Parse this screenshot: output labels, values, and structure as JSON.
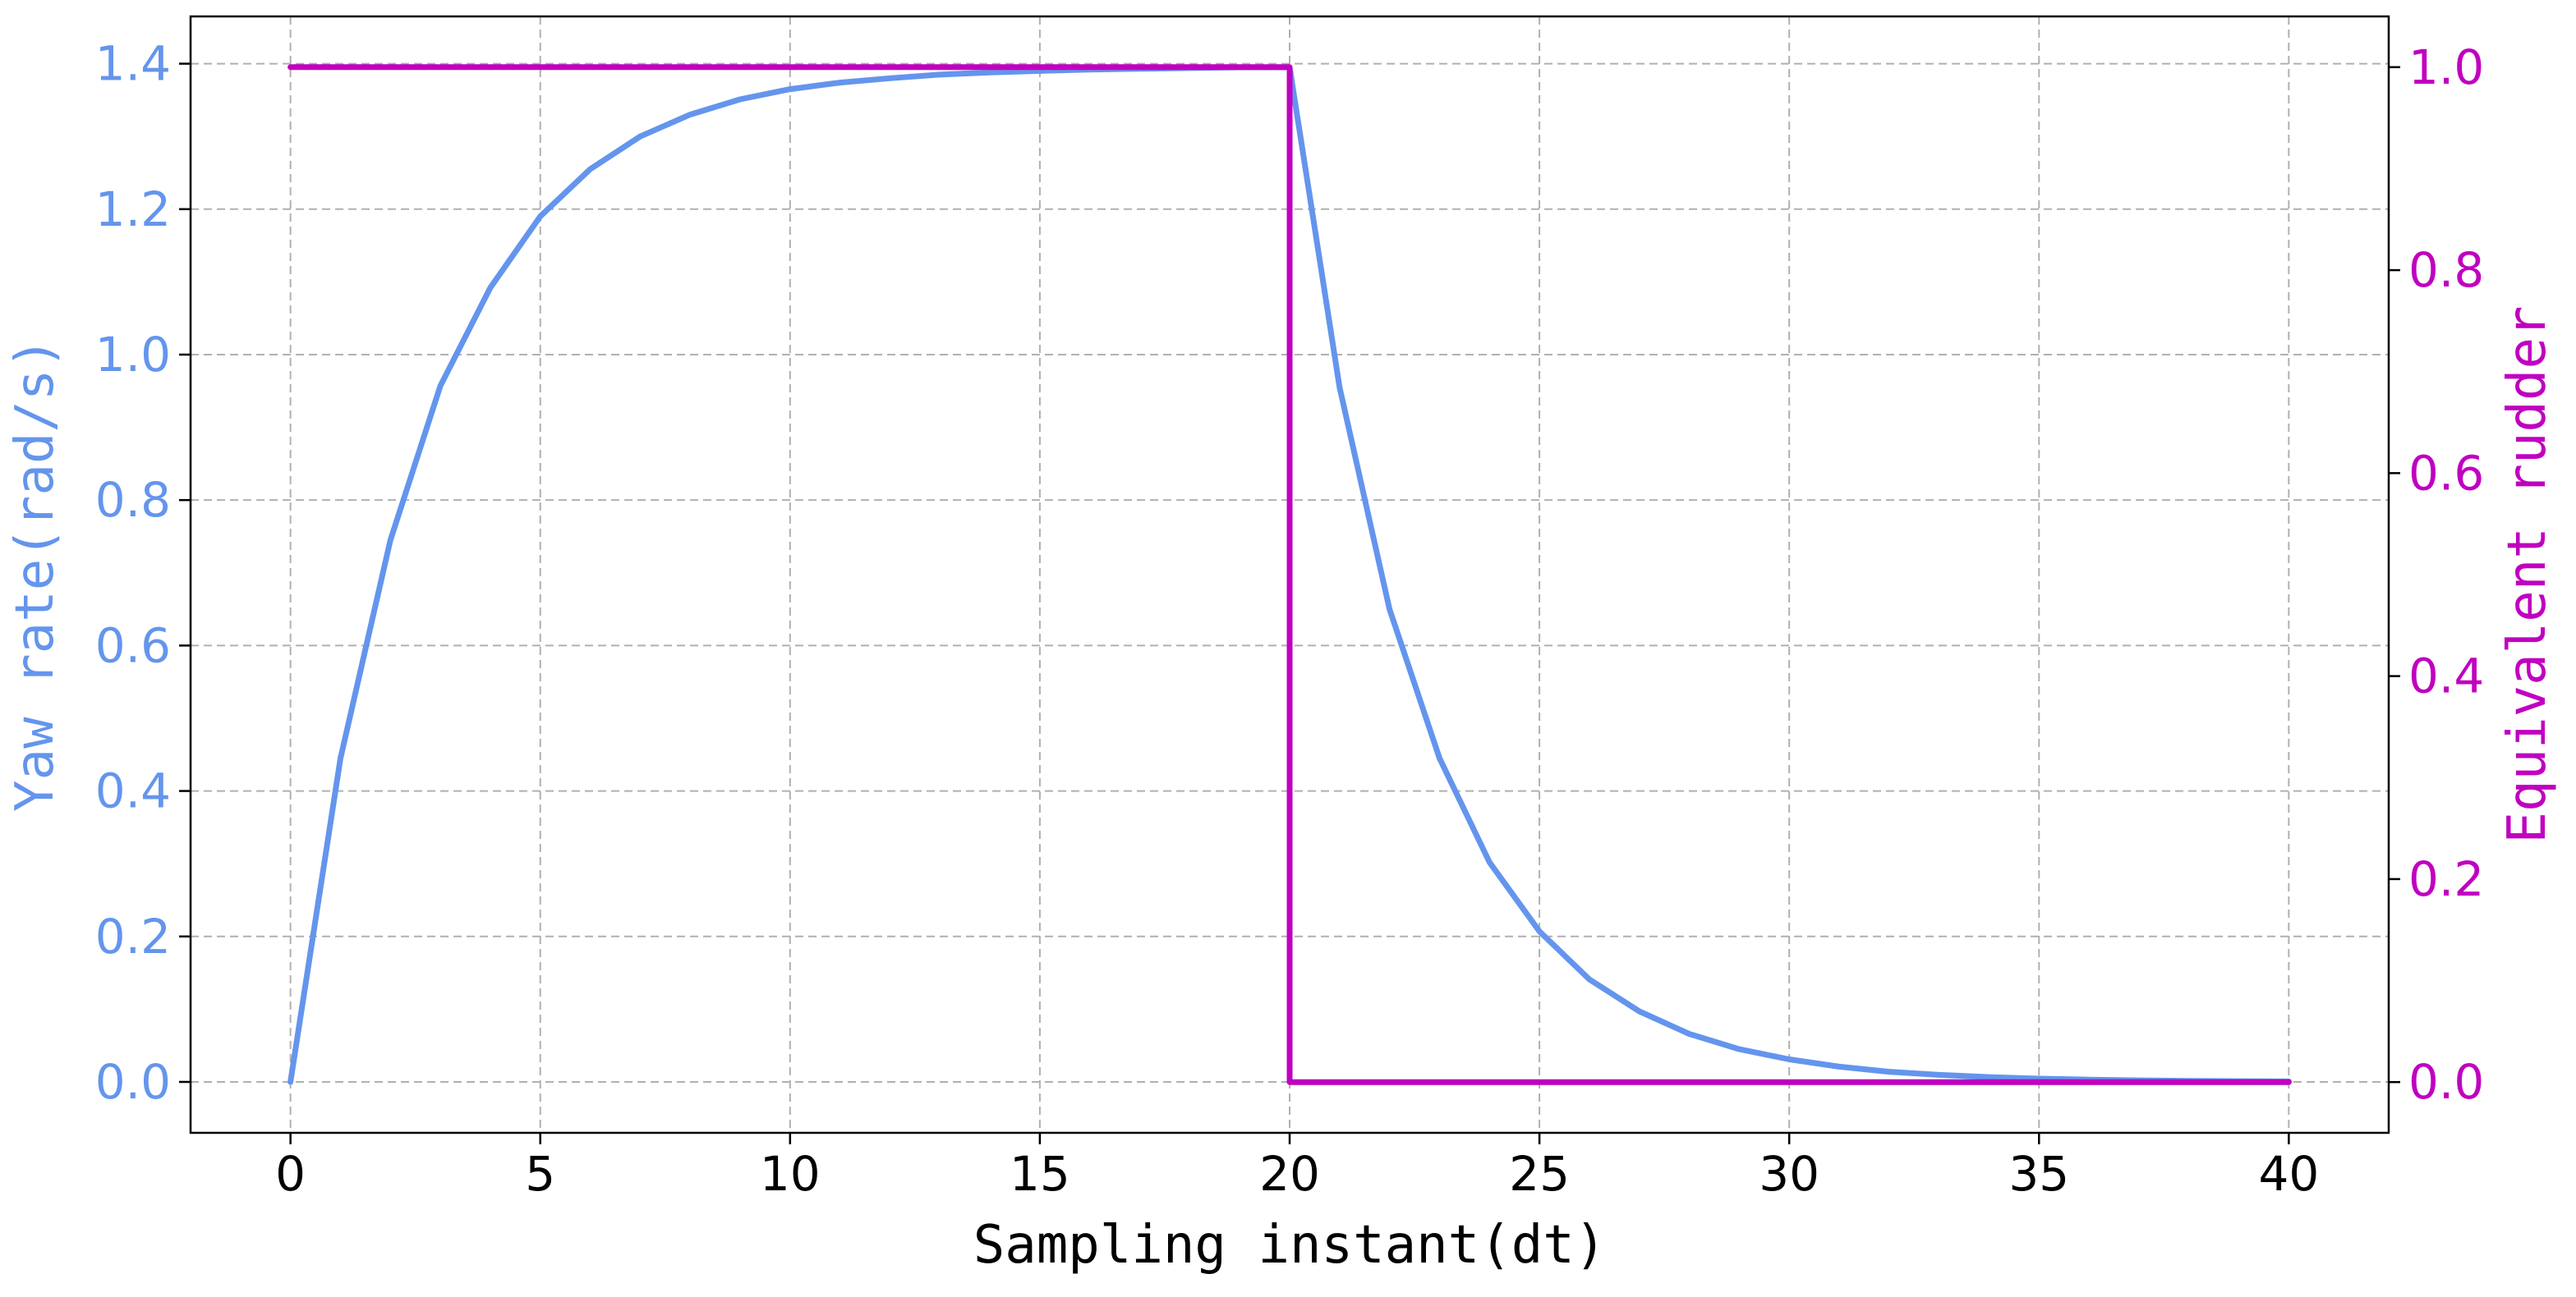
{
  "chart_data": {
    "type": "line",
    "title": "",
    "xlabel": "Sampling instant(dt)",
    "ylabel_left": "Yaw rate(rad/s)",
    "ylabel_right": "Equivalent rudder",
    "xlim": [
      -2,
      42
    ],
    "ylim_left": [
      -0.07,
      1.465
    ],
    "ylim_right": [
      -0.05,
      1.05
    ],
    "x_ticks": [
      0,
      5,
      10,
      15,
      20,
      25,
      30,
      35,
      40
    ],
    "x_tick_labels": [
      "0",
      "5",
      "10",
      "15",
      "20",
      "25",
      "30",
      "35",
      "40"
    ],
    "y_left_ticks": [
      0.0,
      0.2,
      0.4,
      0.6,
      0.8,
      1.0,
      1.2,
      1.4
    ],
    "y_left_tick_labels": [
      "0.0",
      "0.2",
      "0.4",
      "0.6",
      "0.8",
      "1.0",
      "1.2",
      "1.4"
    ],
    "y_right_ticks": [
      0.0,
      0.2,
      0.4,
      0.6,
      0.8,
      1.0
    ],
    "y_right_tick_labels": [
      "0.0",
      "0.2",
      "0.4",
      "0.6",
      "0.8",
      "1.0"
    ],
    "grid": true,
    "colors": {
      "yaw": "#6495ED",
      "rudder": "#C000C0",
      "grid": "#b0b0b0",
      "axis": "#000000"
    },
    "series": [
      {
        "axis": "left",
        "x": [
          0,
          1,
          2,
          3,
          4,
          5,
          6,
          7,
          8,
          9,
          10,
          11,
          12,
          13,
          14,
          15,
          16,
          17,
          18,
          19,
          20,
          21,
          22,
          23,
          24,
          25,
          26,
          27,
          28,
          29,
          30,
          31,
          32,
          33,
          34,
          35,
          36,
          37,
          38,
          39,
          40
        ],
        "values": [
          0.0,
          0.445,
          0.745,
          0.957,
          1.092,
          1.19,
          1.255,
          1.3,
          1.33,
          1.351,
          1.365,
          1.374,
          1.38,
          1.385,
          1.388,
          1.39,
          1.392,
          1.393,
          1.394,
          1.395,
          1.395,
          0.955,
          0.65,
          0.445,
          0.302,
          0.207,
          0.141,
          0.097,
          0.066,
          0.045,
          0.031,
          0.021,
          0.014,
          0.0097,
          0.0066,
          0.0045,
          0.0031,
          0.0021,
          0.0014,
          0.001,
          0.0007
        ]
      },
      {
        "axis": "right",
        "x": [
          0,
          20,
          20,
          40
        ],
        "values": [
          1.0,
          1.0,
          0.0,
          0.0
        ]
      }
    ]
  }
}
